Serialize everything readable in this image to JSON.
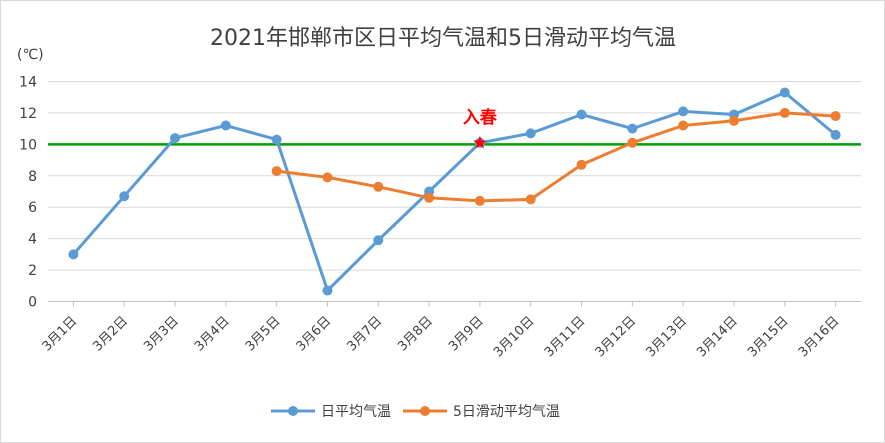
{
  "chart_data": {
    "type": "line",
    "title": "2021年邯郸市区日平均气温和5日滑动平均气温",
    "ylabel": "(℃)",
    "xlabel": "",
    "ylim": [
      0,
      14
    ],
    "y_ticks": [
      0,
      2,
      4,
      6,
      8,
      10,
      12,
      14
    ],
    "grid": true,
    "legend_position": "bottom",
    "categories": [
      "3月1日",
      "3月2日",
      "3月3日",
      "3月4日",
      "3月5日",
      "3月6日",
      "3月7日",
      "3月8日",
      "3月9日",
      "3月10日",
      "3月11日",
      "3月12日",
      "3月13日",
      "3月14日",
      "3月15日",
      "3月16日"
    ],
    "series": [
      {
        "name": "日平均气温",
        "color": "#5b9bd5",
        "values": [
          3.0,
          6.7,
          10.4,
          11.2,
          10.3,
          0.7,
          3.9,
          7.0,
          10.1,
          10.7,
          11.9,
          11.0,
          12.1,
          11.9,
          13.3,
          10.6
        ]
      },
      {
        "name": "5日滑动平均气温",
        "color": "#ed7d31",
        "values": [
          null,
          null,
          null,
          null,
          8.3,
          7.9,
          7.3,
          6.6,
          6.4,
          6.5,
          8.7,
          10.1,
          11.2,
          11.5,
          12.0,
          11.8
        ]
      }
    ],
    "reference_line": {
      "value": 10,
      "color": "#00a000"
    },
    "annotation": {
      "text": "入春",
      "category": "3月9日",
      "value": 10.1,
      "color": "#ff0000",
      "marker": "star"
    }
  }
}
